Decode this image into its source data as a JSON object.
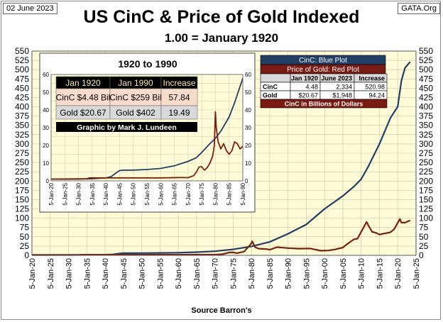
{
  "header": {
    "date_label": "02 June 2023",
    "site_label": "GATA.Org",
    "title": "US CinC & Price of Gold Indexed",
    "subtitle": "1.00 = January 1920"
  },
  "footer": {
    "source": "Source Barron's"
  },
  "legend": {
    "cinc_label": "CinC: Blue Plot",
    "gold_label": "Price of Gold: Red Plot",
    "table_headers": [
      "",
      "Jan 1920",
      "June 2023",
      "Increase"
    ],
    "table_rows": [
      [
        "CinC",
        "4.48",
        "2,334",
        "520.98"
      ],
      [
        "Gold",
        "$20.67",
        "$1,948",
        "94.24"
      ]
    ],
    "note": "CinC in Billions of Dollars",
    "colors": {
      "blue_box": "#1f3f66",
      "red_box": "#7a1a12",
      "cinc_line": "#1f3f66",
      "gold_line": "#7b1f0e"
    }
  },
  "inset": {
    "title": "1920 to 1990",
    "table_headers": [
      "Jan 1920",
      "Jan 1990",
      "Increase"
    ],
    "table_rows": [
      [
        "CinC $4.48 Bil",
        "CinC $259 Bil",
        "57.84"
      ],
      [
        "Gold $20.67",
        "Gold $402",
        "19.49"
      ]
    ],
    "credit": "Graphic by Mark J. Lundeen"
  },
  "chart_data": [
    {
      "type": "line",
      "panel": "main",
      "x_ticks": [
        "5-Jan-20",
        "5-Jan-25",
        "5-Jan-30",
        "5-Jan-35",
        "5-Jan-40",
        "5-Jan-45",
        "5-Jan-50",
        "5-Jan-55",
        "5-Jan-60",
        "5-Jan-65",
        "5-Jan-70",
        "5-Jan-75",
        "5-Jan-80",
        "5-Jan-85",
        "5-Jan-90",
        "5-Jan-95",
        "5-Jan-00",
        "5-Jan-05",
        "5-Jan-10",
        "5-Jan-15",
        "5-Jan-20",
        "5-Jan-25"
      ],
      "xlim": [
        1920,
        2025
      ],
      "ylim": [
        0,
        550
      ],
      "y_ticks": [
        0,
        25,
        50,
        75,
        100,
        125,
        150,
        175,
        200,
        225,
        250,
        275,
        300,
        325,
        350,
        375,
        400,
        425,
        450,
        475,
        500,
        525,
        550
      ],
      "grid": true,
      "background": "#fffbd6",
      "series": [
        {
          "name": "CinC",
          "color": "#1f3f66",
          "x": [
            1920,
            1925,
            1930,
            1935,
            1940,
            1942,
            1944,
            1945,
            1950,
            1955,
            1960,
            1965,
            1970,
            1975,
            1980,
            1985,
            1990,
            1995,
            2000,
            2005,
            2008,
            2010,
            2012,
            2015,
            2018,
            2020,
            2021,
            2022,
            2023.4
          ],
          "y": [
            1.0,
            0.97,
            1.0,
            1.2,
            1.7,
            2.5,
            5.0,
            6.0,
            6.1,
            6.4,
            7.0,
            8.5,
            11.0,
            16.0,
            24.0,
            36.0,
            58.0,
            83.0,
            125.0,
            160.0,
            185.0,
            205.0,
            240.0,
            300.0,
            370.0,
            400.0,
            470.0,
            505.0,
            520.98
          ]
        },
        {
          "name": "Gold",
          "color": "#7b1f0e",
          "x": [
            1920,
            1933,
            1934,
            1945,
            1955,
            1968,
            1970,
            1972,
            1974,
            1975,
            1976,
            1978,
            1980,
            1980.2,
            1981,
            1982,
            1984,
            1985,
            1987,
            1990,
            1993,
            1996,
            1999,
            2001,
            2003,
            2005,
            2006,
            2008,
            2009,
            2011.5,
            2012,
            2013,
            2014,
            2015,
            2016,
            2018,
            2019,
            2020.6,
            2021,
            2022,
            2023.4
          ],
          "y": [
            1.0,
            1.2,
            1.7,
            1.7,
            1.7,
            1.9,
            1.8,
            2.9,
            7.8,
            8.0,
            6.0,
            10.0,
            32.0,
            38.0,
            22.0,
            18.0,
            17.0,
            15.0,
            22.0,
            19.5,
            18.0,
            18.6,
            12.5,
            13.0,
            16.0,
            21.0,
            29.0,
            43.0,
            45.0,
            90.0,
            80.0,
            63.0,
            61.0,
            56.0,
            58.0,
            62.0,
            70.0,
            98.0,
            88.0,
            88.0,
            94.24
          ]
        }
      ]
    },
    {
      "type": "line",
      "panel": "inset",
      "title": "1920 to 1990",
      "x_ticks": [
        "5-Jan-20",
        "5-Jan-25",
        "5-Jan-30",
        "5-Jan-35",
        "5-Jan-40",
        "5-Jan-45",
        "5-Jan-50",
        "5-Jan-55",
        "5-Jan-60",
        "5-Jan-65",
        "5-Jan-70",
        "5-Jan-75",
        "5-Jan-80",
        "5-Jan-85",
        "5-Jan-90"
      ],
      "xlim": [
        1920,
        1990
      ],
      "ylim": [
        0,
        60
      ],
      "y_ticks": [
        0,
        5,
        10,
        15,
        20,
        25,
        30,
        35,
        40,
        45,
        50,
        55,
        60
      ],
      "y_tick_labels": [
        "0",
        "",
        "10",
        "",
        "20",
        "",
        "30",
        "",
        "40",
        "",
        "50",
        "",
        "60"
      ],
      "grid": true,
      "background": "#fffbd6",
      "series": [
        {
          "name": "CinC",
          "color": "#1f3f66",
          "x": [
            1920,
            1925,
            1930,
            1935,
            1940,
            1941,
            1942,
            1943,
            1944,
            1945,
            1946,
            1950,
            1955,
            1960,
            1965,
            1970,
            1973,
            1975,
            1978,
            1980,
            1982,
            1985,
            1987,
            1990
          ],
          "y": [
            1.0,
            0.97,
            1.0,
            1.2,
            1.7,
            2.0,
            2.5,
            3.6,
            4.8,
            5.8,
            6.0,
            6.1,
            6.4,
            7.0,
            8.5,
            11.0,
            13.0,
            16.0,
            21.0,
            24.0,
            28.0,
            36.0,
            44.0,
            57.84
          ]
        },
        {
          "name": "Gold",
          "color": "#7b1f0e",
          "x": [
            1920,
            1933,
            1934,
            1940,
            1950,
            1960,
            1968,
            1970,
            1972,
            1973,
            1974,
            1975,
            1976,
            1977,
            1978,
            1979,
            1979.6,
            1980,
            1980.3,
            1981,
            1982,
            1983,
            1984,
            1985,
            1986,
            1987,
            1988,
            1989,
            1990
          ],
          "y": [
            1.0,
            1.2,
            1.7,
            1.7,
            1.7,
            1.7,
            1.9,
            1.8,
            2.9,
            4.8,
            7.8,
            8.0,
            6.0,
            7.5,
            10.0,
            14.0,
            20.0,
            39.0,
            30.0,
            22.0,
            18.0,
            21.0,
            17.0,
            15.0,
            17.0,
            22.0,
            21.0,
            18.0,
            19.49
          ]
        }
      ]
    }
  ]
}
